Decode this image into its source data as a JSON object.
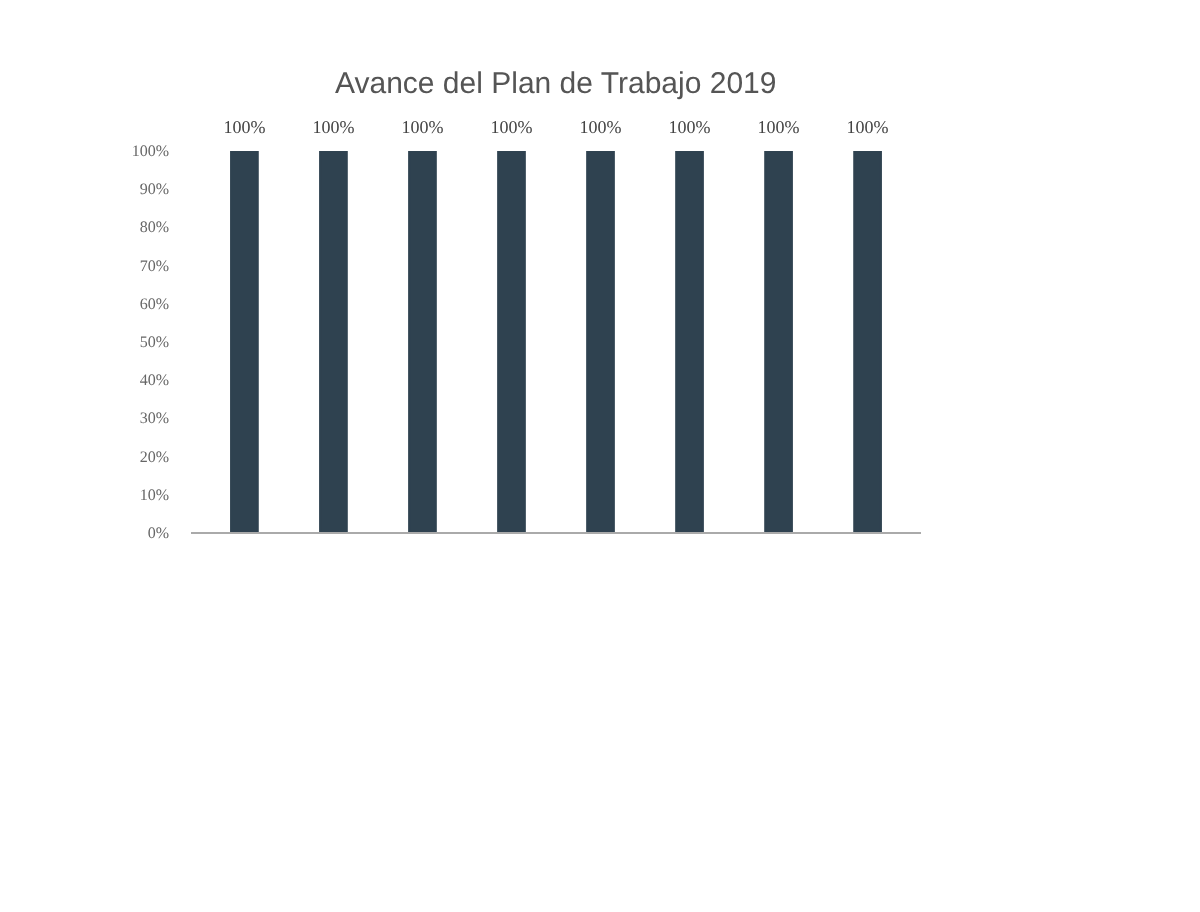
{
  "chart_data": {
    "type": "bar",
    "title": "Avance del Plan de Trabajo 2019",
    "categories": [
      null,
      null,
      null,
      null,
      null,
      null,
      null,
      null
    ],
    "values": [
      100,
      100,
      100,
      100,
      100,
      100,
      100,
      100
    ],
    "value_labels": [
      "100%",
      "100%",
      "100%",
      "100%",
      "100%",
      "100%",
      "100%",
      "100%"
    ],
    "color": "#2f4250",
    "ylim": [
      0,
      100
    ],
    "yticks": [
      {
        "value": 0,
        "label": "0%"
      },
      {
        "value": 10,
        "label": "10%"
      },
      {
        "value": 20,
        "label": "20%"
      },
      {
        "value": 30,
        "label": "30%"
      },
      {
        "value": 40,
        "label": "40%"
      },
      {
        "value": 50,
        "label": "50%"
      },
      {
        "value": 60,
        "label": "60%"
      },
      {
        "value": 70,
        "label": "70%"
      },
      {
        "value": 80,
        "label": "80%"
      },
      {
        "value": 90,
        "label": "90%"
      },
      {
        "value": 100,
        "label": "100%"
      }
    ],
    "grid": false
  }
}
